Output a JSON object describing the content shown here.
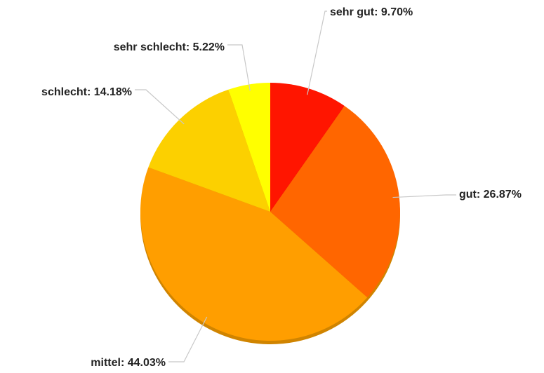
{
  "chart_data": {
    "type": "pie",
    "values": [
      9.7,
      26.87,
      44.03,
      14.18,
      5.22
    ],
    "value_labels": [
      "sehr gut: 9.70%",
      "gut: 26.87%",
      "mittel: 44.03%",
      "schlecht: 14.18%",
      "sehr schlecht: 5.22%"
    ],
    "colors": [
      "#ff1500",
      "#ff6600",
      "#ff9e00",
      "#fcd000",
      "#ffff00"
    ]
  }
}
